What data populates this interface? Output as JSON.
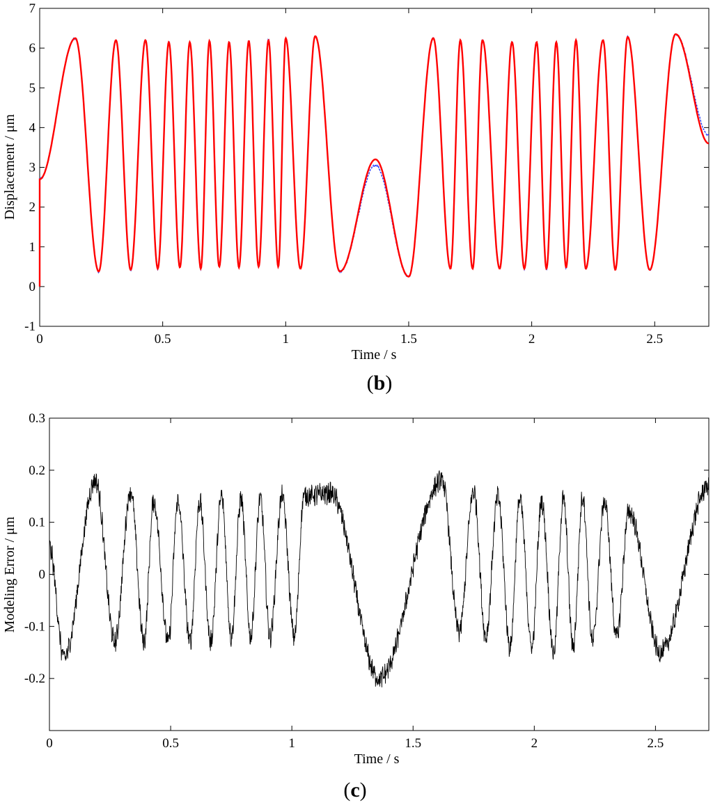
{
  "chart_data": [
    {
      "type": "line",
      "panel_label_open": "(",
      "panel_label_letter": "b",
      "panel_label_close": ")",
      "xlabel": "Time / s",
      "ylabel": "Displacement / μm",
      "xlim": [
        0,
        2.72
      ],
      "ylim": [
        -1,
        7
      ],
      "xticks": [
        0,
        0.5,
        1,
        1.5,
        2,
        2.5
      ],
      "xtick_labels": [
        "0",
        "0.5",
        "1",
        "1.5",
        "2",
        "2.5"
      ],
      "yticks": [
        -1,
        0,
        1,
        2,
        3,
        4,
        5,
        6,
        7
      ],
      "ytick_labels": [
        "-1",
        "0",
        "1",
        "2",
        "3",
        "4",
        "5",
        "6",
        "7"
      ],
      "grid": false,
      "series_colors": [
        "#ff0000",
        "#2b3cff"
      ],
      "peaks": [
        [
          0.145,
          6.25
        ],
        [
          0.31,
          6.2
        ],
        [
          0.43,
          6.2
        ],
        [
          0.525,
          6.15
        ],
        [
          0.61,
          6.15
        ],
        [
          0.69,
          6.18
        ],
        [
          0.77,
          6.15
        ],
        [
          0.85,
          6.18
        ],
        [
          0.93,
          6.2
        ],
        [
          1.0,
          6.25
        ],
        [
          1.12,
          6.3
        ],
        [
          1.365,
          3.2
        ],
        [
          1.6,
          6.25
        ],
        [
          1.71,
          6.2
        ],
        [
          1.8,
          6.2
        ],
        [
          1.92,
          6.15
        ],
        [
          2.02,
          6.15
        ],
        [
          2.1,
          6.15
        ],
        [
          2.18,
          6.2
        ],
        [
          2.29,
          6.2
        ],
        [
          2.39,
          6.28
        ],
        [
          2.585,
          6.35
        ]
      ],
      "troughs": [
        [
          0.24,
          0.38
        ],
        [
          0.37,
          0.42
        ],
        [
          0.48,
          0.45
        ],
        [
          0.57,
          0.48
        ],
        [
          0.655,
          0.45
        ],
        [
          0.73,
          0.5
        ],
        [
          0.81,
          0.48
        ],
        [
          0.89,
          0.5
        ],
        [
          0.97,
          0.5
        ],
        [
          1.06,
          0.45
        ],
        [
          1.22,
          0.38
        ],
        [
          1.5,
          0.25
        ],
        [
          1.67,
          0.45
        ],
        [
          1.76,
          0.45
        ],
        [
          1.87,
          0.45
        ],
        [
          1.97,
          0.45
        ],
        [
          2.06,
          0.45
        ],
        [
          2.14,
          0.48
        ],
        [
          2.22,
          0.45
        ],
        [
          2.34,
          0.42
        ],
        [
          2.48,
          0.42
        ]
      ],
      "start": [
        0.0,
        2.7
      ],
      "end": [
        2.72,
        3.6
      ],
      "blue_offsets": {
        "peak_1.365": -0.15,
        "end": 0.2
      }
    },
    {
      "type": "line",
      "panel_label_open": "(",
      "panel_label_letter": "c",
      "panel_label_close": ")",
      "xlabel": "Time / s",
      "ylabel": "Modeling Error / μm",
      "xlim": [
        0,
        2.72
      ],
      "ylim": [
        -0.3,
        0.3
      ],
      "xticks": [
        0,
        0.5,
        1,
        1.5,
        2,
        2.5
      ],
      "xtick_labels": [
        "0",
        "0.5",
        "1",
        "1.5",
        "2",
        "2.5"
      ],
      "yticks": [
        -0.2,
        -0.1,
        0,
        0.1,
        0.2,
        0.3
      ],
      "ytick_labels": [
        "-0.2",
        "-0.1",
        "0",
        "0.1",
        "0.2",
        "0.3"
      ],
      "grid": false,
      "series_colors": [
        "#000000"
      ],
      "peaks": [
        [
          0.19,
          0.18
        ],
        [
          0.335,
          0.16
        ],
        [
          0.43,
          0.14
        ],
        [
          0.53,
          0.14
        ],
        [
          0.62,
          0.14
        ],
        [
          0.71,
          0.15
        ],
        [
          0.79,
          0.145
        ],
        [
          0.87,
          0.145
        ],
        [
          0.96,
          0.15
        ],
        [
          1.05,
          0.15
        ],
        [
          1.16,
          0.155
        ],
        [
          1.62,
          0.18
        ],
        [
          1.75,
          0.16
        ],
        [
          1.85,
          0.15
        ],
        [
          1.94,
          0.145
        ],
        [
          2.03,
          0.14
        ],
        [
          2.12,
          0.145
        ],
        [
          2.2,
          0.15
        ],
        [
          2.29,
          0.14
        ],
        [
          2.39,
          0.12
        ],
        [
          2.72,
          0.17
        ]
      ],
      "troughs": [
        [
          0.06,
          -0.16
        ],
        [
          0.27,
          -0.13
        ],
        [
          0.39,
          -0.13
        ],
        [
          0.49,
          -0.13
        ],
        [
          0.58,
          -0.13
        ],
        [
          0.665,
          -0.13
        ],
        [
          0.75,
          -0.12
        ],
        [
          0.83,
          -0.12
        ],
        [
          0.91,
          -0.12
        ],
        [
          1.01,
          -0.12
        ],
        [
          1.36,
          -0.2
        ],
        [
          1.69,
          -0.11
        ],
        [
          1.8,
          -0.12
        ],
        [
          1.9,
          -0.14
        ],
        [
          1.99,
          -0.14
        ],
        [
          2.08,
          -0.15
        ],
        [
          2.16,
          -0.14
        ],
        [
          2.24,
          -0.13
        ],
        [
          2.34,
          -0.12
        ],
        [
          2.52,
          -0.15
        ]
      ],
      "start": [
        0.0,
        0.05
      ],
      "end": [
        2.72,
        0.17
      ]
    }
  ]
}
